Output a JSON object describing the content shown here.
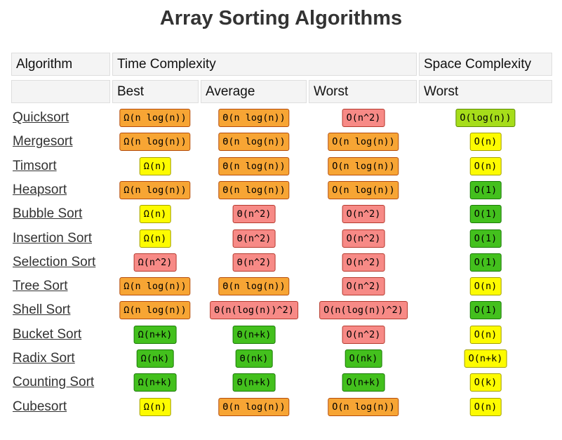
{
  "title": "Array Sorting Algorithms",
  "header": {
    "algorithm": "Algorithm",
    "time_complexity": "Time Complexity",
    "space_complexity": "Space Complexity",
    "best": "Best",
    "average": "Average",
    "worst": "Worst",
    "space_worst": "Worst"
  },
  "colors": {
    "orange": "#f7a534",
    "red": "#f78a86",
    "yellow": "#fdfb00",
    "green": "#43c01d",
    "lime": "#a6dd1a"
  },
  "rows": [
    {
      "name": "Quicksort",
      "best": {
        "text": "Ω(n log(n))",
        "color": "orange"
      },
      "average": {
        "text": "Θ(n log(n))",
        "color": "orange"
      },
      "worst": {
        "text": "O(n^2)",
        "color": "red"
      },
      "space": {
        "text": "O(log(n))",
        "color": "lime"
      }
    },
    {
      "name": "Mergesort",
      "best": {
        "text": "Ω(n log(n))",
        "color": "orange"
      },
      "average": {
        "text": "Θ(n log(n))",
        "color": "orange"
      },
      "worst": {
        "text": "O(n log(n))",
        "color": "orange"
      },
      "space": {
        "text": "O(n)",
        "color": "yellow"
      }
    },
    {
      "name": "Timsort",
      "best": {
        "text": "Ω(n)",
        "color": "yellow"
      },
      "average": {
        "text": "Θ(n log(n))",
        "color": "orange"
      },
      "worst": {
        "text": "O(n log(n))",
        "color": "orange"
      },
      "space": {
        "text": "O(n)",
        "color": "yellow"
      }
    },
    {
      "name": "Heapsort",
      "best": {
        "text": "Ω(n log(n))",
        "color": "orange"
      },
      "average": {
        "text": "Θ(n log(n))",
        "color": "orange"
      },
      "worst": {
        "text": "O(n log(n))",
        "color": "orange"
      },
      "space": {
        "text": "O(1)",
        "color": "green"
      }
    },
    {
      "name": "Bubble Sort",
      "best": {
        "text": "Ω(n)",
        "color": "yellow"
      },
      "average": {
        "text": "Θ(n^2)",
        "color": "red"
      },
      "worst": {
        "text": "O(n^2)",
        "color": "red"
      },
      "space": {
        "text": "O(1)",
        "color": "green"
      }
    },
    {
      "name": "Insertion Sort",
      "best": {
        "text": "Ω(n)",
        "color": "yellow"
      },
      "average": {
        "text": "Θ(n^2)",
        "color": "red"
      },
      "worst": {
        "text": "O(n^2)",
        "color": "red"
      },
      "space": {
        "text": "O(1)",
        "color": "green"
      }
    },
    {
      "name": "Selection Sort",
      "best": {
        "text": "Ω(n^2)",
        "color": "red"
      },
      "average": {
        "text": "Θ(n^2)",
        "color": "red"
      },
      "worst": {
        "text": "O(n^2)",
        "color": "red"
      },
      "space": {
        "text": "O(1)",
        "color": "green"
      }
    },
    {
      "name": "Tree Sort",
      "best": {
        "text": "Ω(n log(n))",
        "color": "orange"
      },
      "average": {
        "text": "Θ(n log(n))",
        "color": "orange"
      },
      "worst": {
        "text": "O(n^2)",
        "color": "red"
      },
      "space": {
        "text": "O(n)",
        "color": "yellow"
      }
    },
    {
      "name": "Shell Sort",
      "best": {
        "text": "Ω(n log(n))",
        "color": "orange"
      },
      "average": {
        "text": "Θ(n(log(n))^2)",
        "color": "red"
      },
      "worst": {
        "text": "O(n(log(n))^2)",
        "color": "red"
      },
      "space": {
        "text": "O(1)",
        "color": "green"
      }
    },
    {
      "name": "Bucket Sort",
      "best": {
        "text": "Ω(n+k)",
        "color": "green"
      },
      "average": {
        "text": "Θ(n+k)",
        "color": "green"
      },
      "worst": {
        "text": "O(n^2)",
        "color": "red"
      },
      "space": {
        "text": "O(n)",
        "color": "yellow"
      }
    },
    {
      "name": "Radix Sort",
      "best": {
        "text": "Ω(nk)",
        "color": "green"
      },
      "average": {
        "text": "Θ(nk)",
        "color": "green"
      },
      "worst": {
        "text": "O(nk)",
        "color": "green"
      },
      "space": {
        "text": "O(n+k)",
        "color": "yellow"
      }
    },
    {
      "name": "Counting Sort",
      "best": {
        "text": "Ω(n+k)",
        "color": "green"
      },
      "average": {
        "text": "Θ(n+k)",
        "color": "green"
      },
      "worst": {
        "text": "O(n+k)",
        "color": "green"
      },
      "space": {
        "text": "O(k)",
        "color": "yellow"
      }
    },
    {
      "name": "Cubesort",
      "best": {
        "text": "Ω(n)",
        "color": "yellow"
      },
      "average": {
        "text": "Θ(n log(n))",
        "color": "orange"
      },
      "worst": {
        "text": "O(n log(n))",
        "color": "orange"
      },
      "space": {
        "text": "O(n)",
        "color": "yellow"
      }
    }
  ]
}
